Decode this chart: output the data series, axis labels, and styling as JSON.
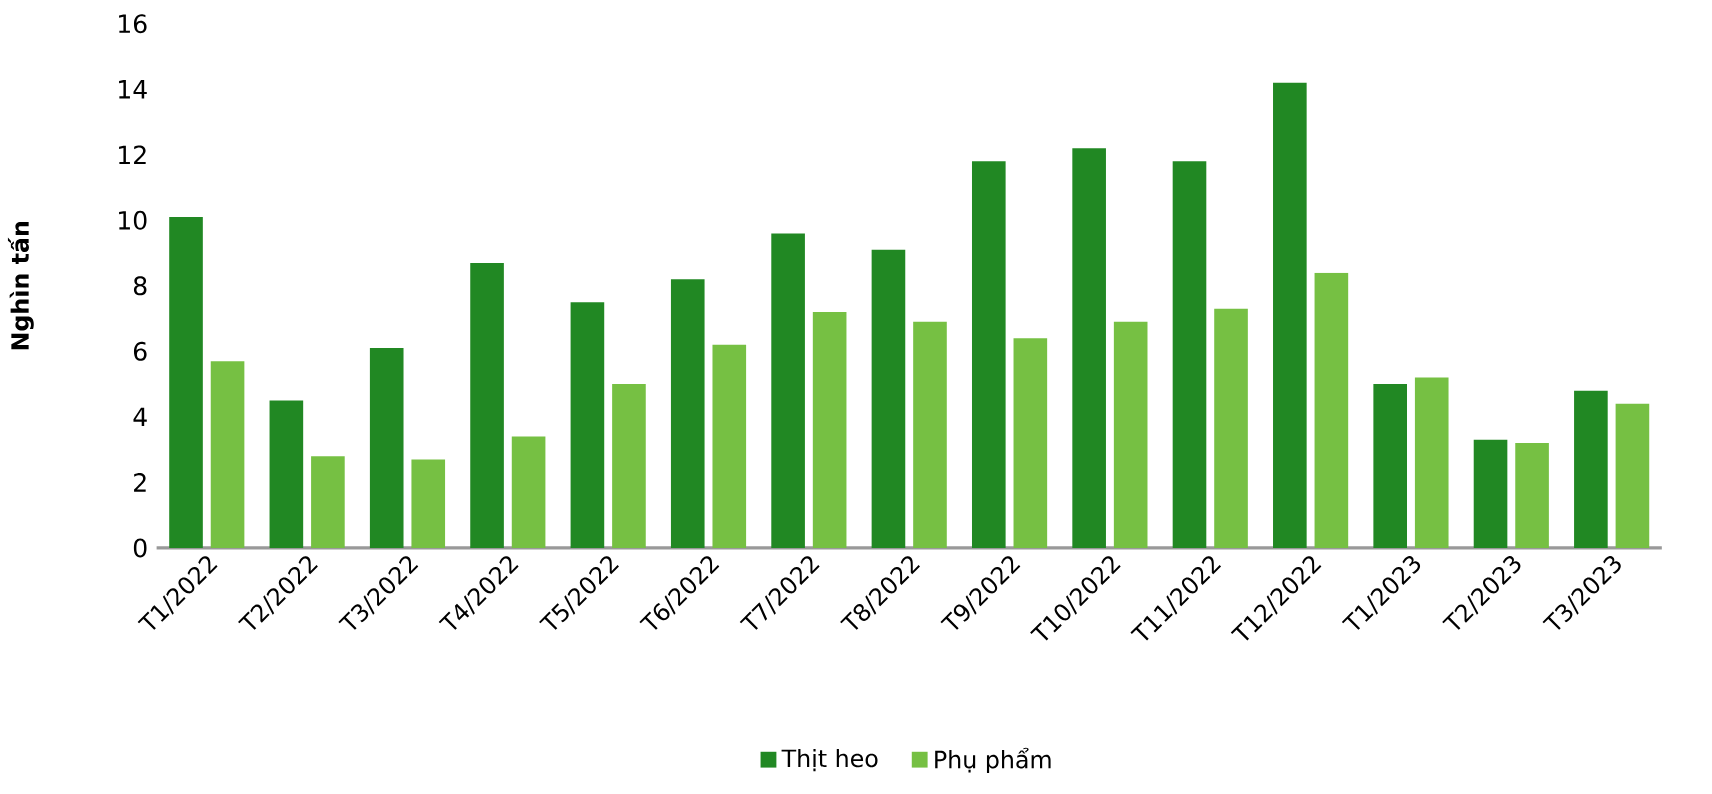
{
  "chart_data": {
    "type": "bar",
    "ylabel": "Nghìn tấn",
    "categories": [
      "T1/2022",
      "T2/2022",
      "T3/2022",
      "T4/2022",
      "T5/2022",
      "T6/2022",
      "T7/2022",
      "T8/2022",
      "T9/2022",
      "T10/2022",
      "T11/2022",
      "T12/2022",
      "T1/2023",
      "T2/2023",
      "T3/2023"
    ],
    "series": [
      {
        "name": "Thịt heo",
        "color": "#218823",
        "values": [
          10.1,
          4.5,
          6.1,
          8.7,
          7.5,
          8.2,
          9.6,
          9.1,
          11.8,
          12.2,
          11.8,
          14.2,
          5.0,
          3.3,
          4.8
        ]
      },
      {
        "name": "Phụ phẩm",
        "color": "#76c043",
        "values": [
          5.7,
          2.8,
          2.7,
          3.4,
          5.0,
          6.2,
          7.2,
          6.9,
          6.4,
          6.9,
          7.3,
          8.4,
          5.2,
          3.2,
          4.4
        ]
      }
    ],
    "ylim": [
      0,
      16
    ],
    "yticks": [
      0,
      2,
      4,
      6,
      8,
      10,
      12,
      14,
      16
    ],
    "grid": false,
    "legend": "bottom"
  }
}
